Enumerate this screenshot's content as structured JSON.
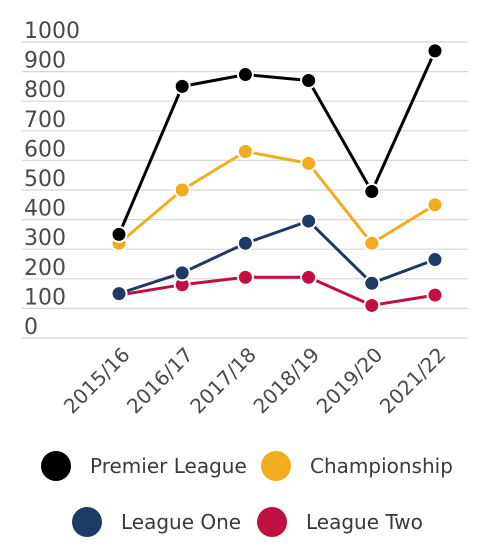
{
  "chart_data": {
    "type": "line",
    "title": "",
    "xlabel": "",
    "ylabel": "",
    "ylim": [
      0,
      1000
    ],
    "yticks": [
      0,
      100,
      200,
      300,
      400,
      500,
      600,
      700,
      800,
      900,
      1000
    ],
    "grid": true,
    "legend_position": "bottom",
    "categories": [
      "2015/16",
      "2016/17",
      "2017/18",
      "2018/19",
      "2019/20",
      "2021/22"
    ],
    "series": [
      {
        "name": "Premier League",
        "color": "#000000",
        "values": [
          350,
          850,
          890,
          870,
          495,
          970
        ]
      },
      {
        "name": "Championship",
        "color": "#f2ac1f",
        "values": [
          320,
          500,
          630,
          590,
          320,
          450
        ]
      },
      {
        "name": "League One",
        "color": "#1f3b63",
        "values": [
          150,
          220,
          320,
          395,
          185,
          265
        ]
      },
      {
        "name": "League Two",
        "color": "#c0103f",
        "values": [
          145,
          180,
          205,
          205,
          110,
          145
        ]
      }
    ]
  }
}
